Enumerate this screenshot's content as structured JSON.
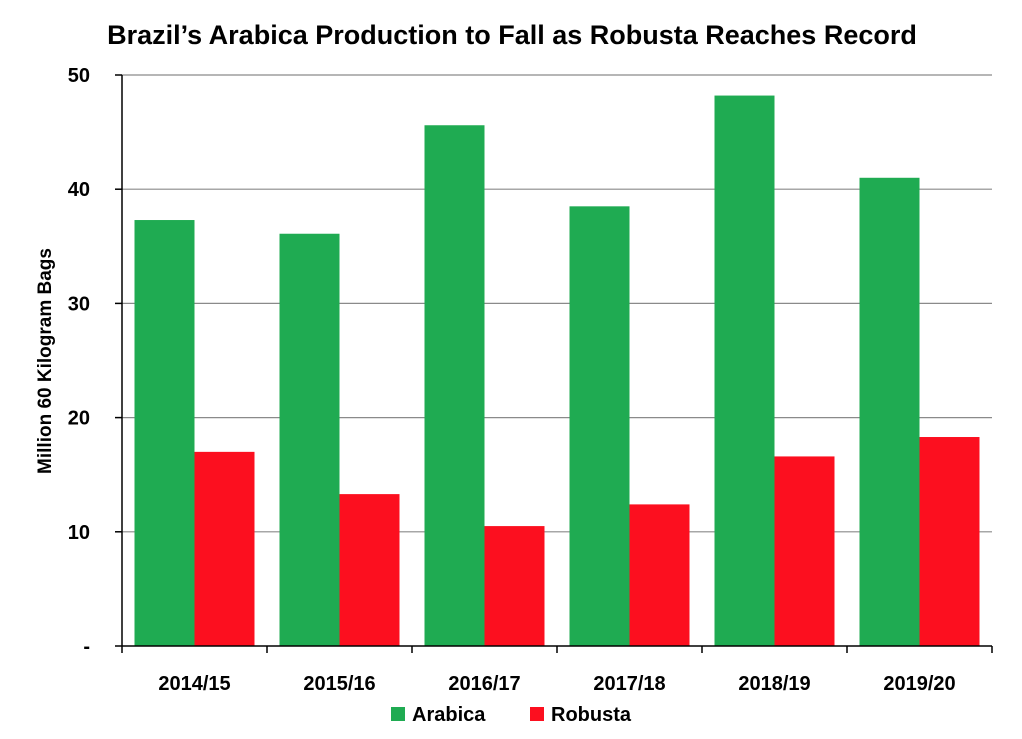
{
  "chart_data": {
    "type": "bar",
    "title": "Brazil’s Arabica Production to Fall as Robusta Reaches Record",
    "xlabel": "",
    "ylabel": "Million 60 Kilogram Bags",
    "ylim": [
      0,
      50
    ],
    "yticks": [
      0,
      10,
      20,
      30,
      40,
      50
    ],
    "ytick_labels": [
      "-",
      "10",
      "20",
      "30",
      "40",
      "50"
    ],
    "grid": true,
    "legend_position": "bottom",
    "categories": [
      "2014/15",
      "2015/16",
      "2016/17",
      "2017/18",
      "2018/19",
      "2019/20"
    ],
    "series": [
      {
        "name": "Arabica",
        "color": "#1fab52",
        "values": [
          37.3,
          36.1,
          45.6,
          38.5,
          48.2,
          41.0
        ]
      },
      {
        "name": "Robusta",
        "color": "#fc0f1f",
        "values": [
          17.0,
          13.3,
          10.5,
          12.4,
          16.6,
          18.3
        ]
      }
    ]
  }
}
